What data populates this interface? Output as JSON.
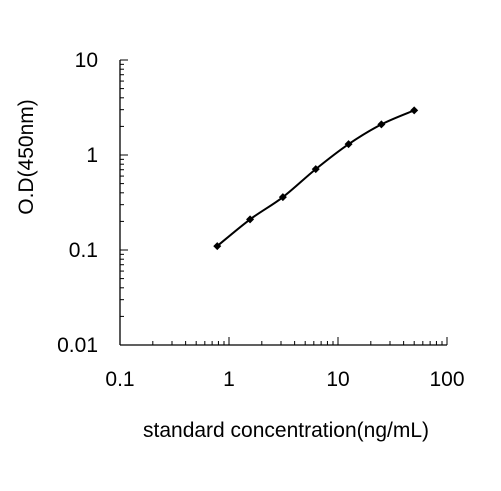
{
  "chart_data": {
    "type": "line",
    "xlabel": "standard concentration(ng/mL)",
    "ylabel": "O.D(450nm)",
    "x_scale": "log",
    "y_scale": "log",
    "xlim": [
      0.1,
      100
    ],
    "ylim": [
      0.01,
      10
    ],
    "x_ticks": [
      "0.1",
      "1",
      "10",
      "100"
    ],
    "y_ticks": [
      "0.01",
      "0.1",
      "1",
      "10"
    ],
    "grid": false,
    "legend": "none",
    "series": [
      {
        "x": [
          0.78,
          1.56,
          3.12,
          6.25,
          12.5,
          25,
          50
        ],
        "y": [
          0.11,
          0.21,
          0.36,
          0.71,
          1.3,
          2.1,
          2.95
        ],
        "marker": "diamond",
        "color": "#000000"
      }
    ]
  }
}
